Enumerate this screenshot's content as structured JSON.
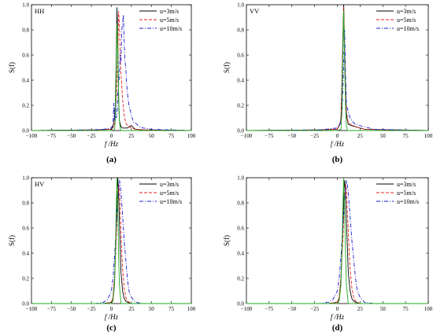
{
  "chart_data": [
    {
      "type": "line",
      "panel_label": "(a)",
      "title": "HH",
      "xlabel": "f /Hz",
      "ylabel": "S(f)",
      "xlim": [
        -100,
        100
      ],
      "ylim": [
        0,
        1.0
      ],
      "x_ticks": [
        "−100",
        "−75",
        "−50",
        "−25",
        "0",
        "25",
        "50",
        "75",
        "100"
      ],
      "y_ticks": [
        "0.0",
        "0.2",
        "0.4",
        "0.6",
        "0.8",
        "1.0"
      ],
      "legend_position": "top-right",
      "series": [
        {
          "name": "u=3m/s",
          "color": "#000000",
          "style": "solid",
          "x": [
            -100,
            -20,
            0,
            3,
            5,
            6,
            7,
            8,
            9,
            10,
            12,
            14,
            16,
            20,
            25,
            28,
            30,
            40,
            100
          ],
          "y": [
            0,
            0.005,
            0.01,
            0.05,
            0.2,
            0.55,
            0.98,
            0.7,
            0.25,
            0.08,
            0.03,
            0.02,
            0.02,
            0.02,
            0.04,
            0.02,
            0.01,
            0.005,
            0
          ]
        },
        {
          "name": "u=5m/s",
          "color": "#e8231f",
          "style": "dashed",
          "x": [
            -100,
            -20,
            0,
            3,
            5,
            7,
            8,
            9,
            10,
            11,
            12,
            13,
            14,
            16,
            18,
            20,
            25,
            30,
            40,
            100
          ],
          "y": [
            0,
            0.005,
            0.01,
            0.03,
            0.15,
            0.35,
            0.6,
            0.95,
            0.85,
            0.6,
            0.45,
            0.35,
            0.25,
            0.12,
            0.06,
            0.04,
            0.02,
            0.01,
            0.005,
            0
          ]
        },
        {
          "name": "u=10m/s",
          "color": "#1a1ad0",
          "style": "dashdot",
          "x": [
            -100,
            -25,
            -10,
            0,
            2,
            3,
            4,
            5,
            6,
            7,
            8,
            9,
            10,
            11,
            12,
            13,
            14,
            15,
            16,
            17,
            18,
            19,
            20,
            22,
            24,
            26,
            28,
            30,
            35,
            40,
            50,
            100
          ],
          "y": [
            0,
            0.005,
            0.01,
            0.02,
            0.05,
            0.22,
            0.08,
            0.2,
            0.1,
            0.12,
            0.3,
            0.35,
            0.45,
            0.6,
            0.55,
            0.8,
            0.85,
            0.92,
            0.7,
            0.55,
            0.5,
            0.38,
            0.3,
            0.2,
            0.15,
            0.1,
            0.06,
            0.06,
            0.03,
            0.02,
            0.01,
            0
          ]
        },
        {
          "name": "",
          "color": "#22aa22",
          "style": "solid",
          "x": [
            -100,
            0,
            4,
            5,
            6,
            7,
            8,
            9,
            10,
            11,
            12,
            100
          ],
          "y": [
            0,
            0,
            0.01,
            0.1,
            0.4,
            0.85,
            0.6,
            0.3,
            0.08,
            0.02,
            0,
            0
          ]
        }
      ]
    },
    {
      "type": "line",
      "panel_label": "(b)",
      "title": "VV",
      "xlabel": "f /Hz",
      "ylabel": "S(f)",
      "xlim": [
        -100,
        100
      ],
      "ylim": [
        0,
        1.0
      ],
      "x_ticks": [
        "−100",
        "−75",
        "−50",
        "−25",
        "0",
        "25",
        "50",
        "75",
        "100"
      ],
      "y_ticks": [
        "0.0",
        "0.2",
        "0.4",
        "0.6",
        "0.8",
        "1.0"
      ],
      "legend_position": "top-right",
      "series": [
        {
          "name": "u=3m/s",
          "color": "#000000",
          "style": "solid",
          "x": [
            -100,
            -20,
            0,
            3,
            4,
            5,
            6,
            7,
            8,
            9,
            10,
            12,
            15,
            20,
            25,
            30,
            100
          ],
          "y": [
            0,
            0.005,
            0.01,
            0.06,
            0.1,
            0.35,
            0.7,
            1.0,
            0.6,
            0.3,
            0.12,
            0.05,
            0.04,
            0.03,
            0.02,
            0.01,
            0
          ]
        },
        {
          "name": "u=5m/s",
          "color": "#e8231f",
          "style": "dashed",
          "x": [
            -100,
            -20,
            0,
            3,
            4,
            5,
            6,
            7,
            8,
            9,
            10,
            12,
            15,
            20,
            25,
            30,
            100
          ],
          "y": [
            0,
            0.005,
            0.01,
            0.05,
            0.1,
            0.3,
            0.65,
            0.98,
            0.7,
            0.35,
            0.15,
            0.06,
            0.05,
            0.03,
            0.02,
            0.01,
            0
          ]
        },
        {
          "name": "u=10m/s",
          "color": "#1a1ad0",
          "style": "dashdot",
          "x": [
            -100,
            -20,
            0,
            3,
            5,
            6,
            7,
            8,
            9,
            10,
            12,
            14,
            16,
            18,
            20,
            22,
            25,
            28,
            30,
            35,
            40,
            100
          ],
          "y": [
            0,
            0.005,
            0.02,
            0.05,
            0.12,
            0.3,
            0.55,
            0.8,
            0.45,
            0.2,
            0.15,
            0.1,
            0.08,
            0.06,
            0.05,
            0.05,
            0.04,
            0.03,
            0.03,
            0.02,
            0.01,
            0
          ]
        },
        {
          "name": "",
          "color": "#22aa22",
          "style": "solid",
          "x": [
            -100,
            0,
            4,
            5,
            6,
            7,
            8,
            9,
            10,
            11,
            100
          ],
          "y": [
            0,
            0,
            0.01,
            0.15,
            0.6,
            0.95,
            0.55,
            0.2,
            0.04,
            0,
            0
          ]
        }
      ]
    },
    {
      "type": "line",
      "panel_label": "(c)",
      "title": "HV",
      "xlabel": "f /Hz",
      "ylabel": "S(f)",
      "xlim": [
        -100,
        100
      ],
      "ylim": [
        0,
        1.0
      ],
      "x_ticks": [
        "−100",
        "−75",
        "−50",
        "−25",
        "0",
        "25",
        "50",
        "75",
        "100"
      ],
      "y_ticks": [
        "0.0",
        "0.2",
        "0.4",
        "0.6",
        "0.8",
        "1.0"
      ],
      "legend_position": "top-right",
      "series": [
        {
          "name": "u=3m/s",
          "color": "#000000",
          "style": "solid",
          "x": [
            -100,
            -10,
            0,
            2,
            4,
            6,
            7,
            8,
            9,
            10,
            11,
            12,
            14,
            16,
            18,
            20,
            25,
            100
          ],
          "y": [
            0,
            0,
            0.01,
            0.04,
            0.2,
            0.62,
            0.85,
            1.0,
            0.88,
            0.65,
            0.45,
            0.25,
            0.1,
            0.04,
            0.02,
            0.01,
            0,
            0
          ]
        },
        {
          "name": "u=5m/s",
          "color": "#e8231f",
          "style": "dashed",
          "x": [
            -100,
            -10,
            0,
            2,
            4,
            6,
            8,
            9,
            10,
            11,
            12,
            13,
            14,
            16,
            18,
            20,
            25,
            100
          ],
          "y": [
            0,
            0,
            0.01,
            0.05,
            0.2,
            0.5,
            0.85,
            0.95,
            0.9,
            0.75,
            0.58,
            0.4,
            0.28,
            0.12,
            0.05,
            0.02,
            0,
            0
          ]
        },
        {
          "name": "u=10m/s",
          "color": "#1a1ad0",
          "style": "dashdot",
          "x": [
            -100,
            -20,
            -10,
            -5,
            0,
            2,
            4,
            6,
            8,
            10,
            11,
            12,
            14,
            16,
            18,
            20,
            22,
            25,
            30,
            40,
            100
          ],
          "y": [
            0,
            0,
            0.01,
            0.03,
            0.1,
            0.2,
            0.38,
            0.6,
            0.82,
            0.98,
            0.95,
            0.88,
            0.7,
            0.5,
            0.35,
            0.2,
            0.1,
            0.05,
            0.01,
            0,
            0
          ]
        },
        {
          "name": "",
          "color": "#22aa22",
          "style": "solid",
          "x": [
            -100,
            0,
            2,
            4,
            5,
            6,
            7,
            8,
            9,
            10,
            12,
            100
          ],
          "y": [
            0,
            0,
            0.02,
            0.15,
            0.4,
            0.75,
            1.0,
            0.75,
            0.4,
            0.15,
            0,
            0
          ]
        }
      ]
    },
    {
      "type": "line",
      "panel_label": "(d)",
      "title": "",
      "xlabel": "f /Hz",
      "ylabel": "S(f)",
      "xlim": [
        -100,
        100
      ],
      "ylim": [
        0,
        1.0
      ],
      "x_ticks": [
        "−100",
        "−75",
        "−50",
        "−25",
        "0",
        "25",
        "50",
        "75",
        "100"
      ],
      "y_ticks": [
        "0.0",
        "0.2",
        "0.4",
        "0.6",
        "0.8",
        "1.0"
      ],
      "legend_position": "top-right",
      "series": [
        {
          "name": "u=3m/s",
          "color": "#000000",
          "style": "solid",
          "x": [
            -100,
            -10,
            0,
            2,
            4,
            6,
            7,
            8,
            9,
            10,
            11,
            12,
            14,
            16,
            18,
            20,
            25,
            100
          ],
          "y": [
            0,
            0,
            0.01,
            0.04,
            0.2,
            0.62,
            0.85,
            0.98,
            0.88,
            0.65,
            0.45,
            0.25,
            0.1,
            0.04,
            0.02,
            0.01,
            0,
            0
          ]
        },
        {
          "name": "u=5m/s",
          "color": "#e8231f",
          "style": "dashed",
          "x": [
            -100,
            -10,
            0,
            2,
            4,
            6,
            8,
            9,
            10,
            11,
            12,
            13,
            14,
            16,
            18,
            20,
            25,
            100
          ],
          "y": [
            0,
            0,
            0.01,
            0.05,
            0.2,
            0.5,
            0.85,
            0.95,
            0.9,
            0.75,
            0.58,
            0.4,
            0.28,
            0.12,
            0.05,
            0.02,
            0,
            0
          ]
        },
        {
          "name": "u=10m/s",
          "color": "#1a1ad0",
          "style": "dashdot",
          "x": [
            -100,
            -20,
            -10,
            -5,
            0,
            2,
            4,
            6,
            8,
            10,
            11,
            12,
            14,
            16,
            18,
            20,
            22,
            25,
            30,
            40,
            100
          ],
          "y": [
            0,
            0,
            0.01,
            0.03,
            0.1,
            0.2,
            0.38,
            0.6,
            0.82,
            0.98,
            0.95,
            0.88,
            0.7,
            0.5,
            0.35,
            0.2,
            0.1,
            0.05,
            0.01,
            0,
            0
          ]
        },
        {
          "name": "",
          "color": "#22aa22",
          "style": "solid",
          "x": [
            -100,
            0,
            2,
            4,
            5,
            6,
            7,
            8,
            9,
            10,
            12,
            100
          ],
          "y": [
            0,
            0,
            0.02,
            0.15,
            0.4,
            0.75,
            1.0,
            0.75,
            0.4,
            0.15,
            0,
            0
          ]
        }
      ]
    }
  ]
}
